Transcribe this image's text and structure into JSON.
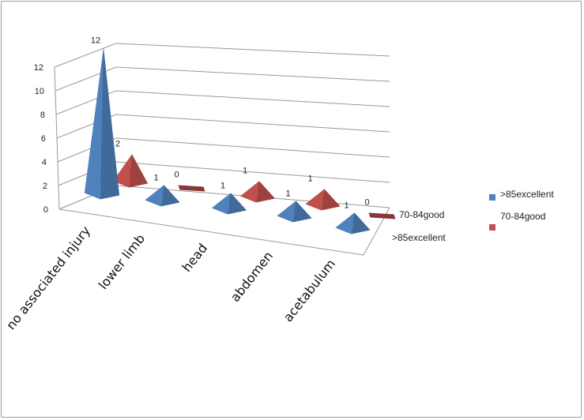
{
  "chart_data": {
    "type": "bar",
    "style": "3d-pyramid",
    "categories": [
      "no associated injury",
      "lower limb",
      "head",
      "abdomen",
      "acetabulum"
    ],
    "series": [
      {
        "name": ">85excellent",
        "values": [
          12,
          1,
          1,
          1,
          1
        ],
        "color": "#4F81BD"
      },
      {
        "name": "70-84good",
        "values": [
          2,
          0,
          1,
          1,
          0
        ],
        "color": "#C0504D"
      }
    ],
    "yticks": [
      "0",
      "2",
      "4",
      "6",
      "8",
      "10",
      "12"
    ],
    "ylim": [
      0,
      12
    ],
    "grid": true,
    "legend": "right",
    "xlabel": "",
    "ylabel": "",
    "title": ""
  }
}
